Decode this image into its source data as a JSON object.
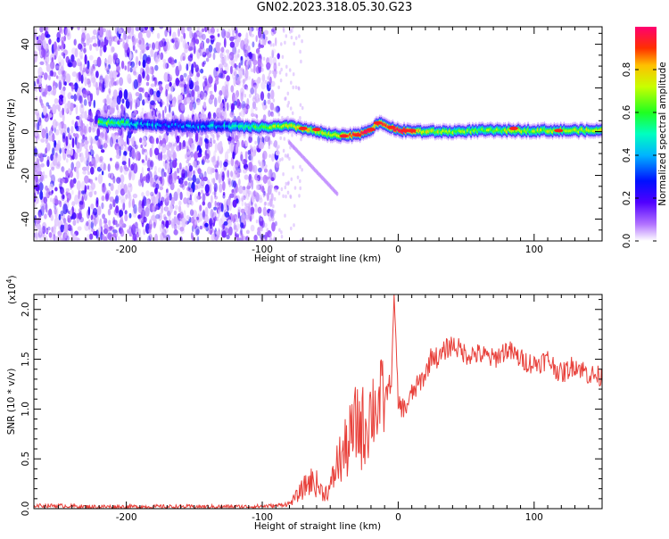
{
  "title": "GN02.2023.318.05.30.G23",
  "chart_data": [
    {
      "type": "heatmap",
      "panel": "spectrogram",
      "xlabel": "Height of straight line (km)",
      "ylabel": "Frequency (Hz)",
      "xlim": [
        -268,
        150
      ],
      "ylim": [
        -50,
        48
      ],
      "x_ticks": [
        -200,
        -100,
        0,
        100
      ],
      "x_tick_labels": [
        "-200",
        "-100",
        "0",
        "100"
      ],
      "y_ticks": [
        -40,
        -20,
        0,
        20,
        40
      ],
      "y_tick_labels": [
        "-40",
        "-20",
        "0",
        "20",
        "40"
      ],
      "colorbar": {
        "label": "Normalized spectral amplitude",
        "range": [
          0,
          1
        ],
        "ticks": [
          0.0,
          0.2,
          0.4,
          0.6,
          0.8
        ],
        "tick_labels": [
          "0.0",
          "0.2",
          "0.4",
          "0.6",
          "0.8"
        ],
        "colors": [
          "#ffffff",
          "#8000ff",
          "#0000ff",
          "#00c8ff",
          "#00ff80",
          "#80ff00",
          "#ffff00",
          "#ff8000",
          "#ff0000",
          "#ff0080"
        ]
      },
      "ridge": {
        "x": [
          -220,
          -205,
          -190,
          -170,
          -150,
          -130,
          -110,
          -95,
          -80,
          -70,
          -60,
          -50,
          -40,
          -30,
          -20,
          -15,
          -10,
          -5,
          0,
          20,
          40,
          60,
          80,
          100,
          120,
          150
        ],
        "y": [
          4.5,
          4,
          3.5,
          3,
          2.5,
          2.5,
          2,
          2,
          2.5,
          1.5,
          0,
          -1.5,
          -2,
          -1.5,
          1,
          4,
          3,
          2,
          0.5,
          0,
          0,
          0.5,
          0.5,
          0.5,
          0.5,
          0.5
        ],
        "amplitude": [
          0.5,
          0.45,
          0.3,
          0.25,
          0.25,
          0.3,
          0.45,
          0.55,
          0.6,
          0.65,
          0.6,
          0.55,
          0.7,
          0.8,
          0.85,
          0.7,
          0.8,
          0.75,
          0.9,
          0.6,
          0.55,
          0.5,
          0.55,
          0.55,
          0.6,
          0.55
        ]
      }
    },
    {
      "type": "line",
      "panel": "snr",
      "xlabel": "Height of straight line (km)",
      "ylabel": "SNR (10 * v/v)",
      "y_multiplier": "(x10",
      "y_multiplier_exp": "4",
      "y_multiplier_close": ")",
      "xlim": [
        -268,
        150
      ],
      "ylim": [
        0,
        2.15
      ],
      "x_ticks": [
        -200,
        -100,
        0,
        100
      ],
      "x_tick_labels": [
        "-200",
        "-100",
        "0",
        "100"
      ],
      "y_ticks": [
        0,
        0.5,
        1.0,
        1.5,
        2.0
      ],
      "y_tick_labels": [
        "0.0",
        "0.5",
        "1.0",
        "1.5",
        "2.0"
      ],
      "color": "#e8403a",
      "series": [
        {
          "x": [
            -268,
            -250,
            -230,
            -200,
            -170,
            -140,
            -110,
            -90,
            -80,
            -75,
            -70,
            -65,
            -60,
            -55,
            -50,
            -45,
            -40,
            -35,
            -30,
            -25,
            -20,
            -15,
            -10,
            -5,
            -3,
            0,
            5,
            10,
            15,
            20,
            25,
            30,
            35,
            40,
            50,
            60,
            70,
            80,
            90,
            100,
            110,
            120,
            130,
            140,
            150
          ],
          "y": [
            0.03,
            0.03,
            0.02,
            0.02,
            0.02,
            0.02,
            0.02,
            0.03,
            0.05,
            0.12,
            0.2,
            0.28,
            0.25,
            0.15,
            0.2,
            0.45,
            0.55,
            0.7,
            0.85,
            0.8,
            1.0,
            1.05,
            1.1,
            1.3,
            2.15,
            1.05,
            1.0,
            1.15,
            1.25,
            1.35,
            1.55,
            1.5,
            1.6,
            1.65,
            1.55,
            1.55,
            1.5,
            1.6,
            1.5,
            1.45,
            1.5,
            1.35,
            1.45,
            1.35,
            1.32
          ]
        }
      ]
    }
  ]
}
